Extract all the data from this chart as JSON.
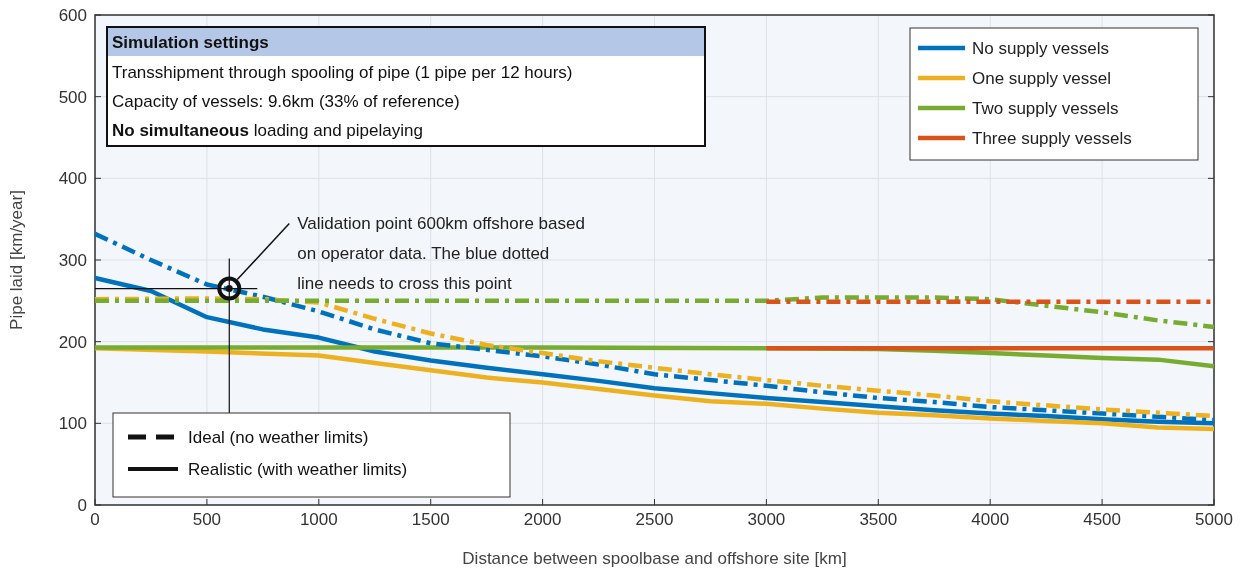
{
  "chart_data": {
    "type": "line",
    "xlabel": "Distance between spoolbase and offshore site [km]",
    "ylabel": "Pipe laid [km/year]",
    "xlim": [
      0,
      5000
    ],
    "xticks": [
      0,
      500,
      1000,
      1500,
      2000,
      2500,
      3000,
      3500,
      4000,
      4500,
      5000
    ],
    "ylim": [
      0,
      600
    ],
    "yticks": [
      0,
      100,
      200,
      300,
      400,
      500,
      600
    ],
    "grid": true,
    "legend": "top right",
    "series": [
      {
        "name": "No supply vessels",
        "color": "#0072bd",
        "line_style": "solid",
        "x": [
          0,
          250,
          500,
          750,
          1000,
          1250,
          1500,
          1750,
          2000,
          2250,
          2500,
          2750,
          3000,
          3250,
          3500,
          3750,
          4000,
          4250,
          4500,
          4750,
          5000
        ],
        "values": [
          278,
          262,
          230,
          215,
          205,
          188,
          177,
          168,
          160,
          152,
          143,
          137,
          131,
          126,
          121,
          116,
          112,
          109,
          105,
          102,
          100
        ]
      },
      {
        "name": "One supply vessel",
        "color": "#edb120",
        "line_style": "solid",
        "x": [
          0,
          500,
          1000,
          1250,
          1500,
          1750,
          2000,
          2250,
          2500,
          2750,
          3000,
          3250,
          3500,
          3750,
          4000,
          4250,
          4500,
          4750,
          5000
        ],
        "values": [
          192,
          188,
          183,
          174,
          165,
          156,
          150,
          142,
          134,
          127,
          124,
          118,
          113,
          110,
          106,
          103,
          100,
          95,
          93
        ]
      },
      {
        "name": "Two supply vessels",
        "color": "#77ac30",
        "line_style": "solid",
        "x": [
          0,
          1000,
          2000,
          3000,
          3500,
          3750,
          4000,
          4250,
          4500,
          4750,
          5000
        ],
        "values": [
          193,
          193,
          193,
          192,
          191,
          189,
          186,
          183,
          180,
          178,
          170
        ]
      },
      {
        "name": "Three supply vessels",
        "color": "#d95319",
        "line_style": "solid",
        "x": [
          3000,
          4000,
          5000
        ],
        "values": [
          192,
          192,
          192
        ]
      },
      {
        "color": "#0072bd",
        "line_style": "dashed",
        "x": [
          0,
          250,
          500,
          750,
          1000,
          1250,
          1500,
          1750,
          2000,
          2250,
          2500,
          2750,
          3000,
          3250,
          3500,
          3750,
          4000,
          4250,
          4500,
          4750,
          5000
        ],
        "values": [
          332,
          300,
          270,
          255,
          237,
          215,
          198,
          190,
          182,
          172,
          160,
          153,
          146,
          138,
          131,
          126,
          120,
          116,
          112,
          108,
          104
        ]
      },
      {
        "color": "#edb120",
        "line_style": "dashed",
        "x": [
          0,
          500,
          750,
          1000,
          1250,
          1500,
          1750,
          2000,
          2250,
          2500,
          2750,
          3000,
          3250,
          3500,
          3750,
          4000,
          4250,
          4500,
          4750,
          5000
        ],
        "values": [
          252,
          253,
          252,
          248,
          228,
          210,
          196,
          186,
          176,
          168,
          160,
          153,
          146,
          140,
          134,
          127,
          122,
          117,
          113,
          109
        ]
      },
      {
        "color": "#77ac30",
        "line_style": "dashed",
        "x": [
          0,
          1000,
          2000,
          3000,
          3250,
          3500,
          3750,
          4000,
          4250,
          4500,
          4750,
          5000
        ],
        "values": [
          250,
          250,
          250,
          250,
          254,
          254,
          254,
          252,
          244,
          236,
          226,
          218
        ]
      },
      {
        "color": "#d95319",
        "line_style": "dashed",
        "x": [
          3000,
          4000,
          5000
        ],
        "values": [
          249,
          249,
          249
        ]
      },
      {
        "type": "scatter",
        "color": "#111111",
        "marker": "circle",
        "x": [
          600
        ],
        "values": [
          265
        ]
      }
    ],
    "annotations": [
      "Simulation settings",
      "Transshipment through spooling of pipe (1 pipe per 12 hours)",
      "Capacity of vessels: 9.6km (33% of reference)",
      "No simultaneous",
      "loading and pipelaying",
      "Validation point 600km offshore based on operator data. The blue dotted line needs to cross this point",
      "Ideal (no weather limits)",
      "Realistic (with weather limits)"
    ]
  }
}
